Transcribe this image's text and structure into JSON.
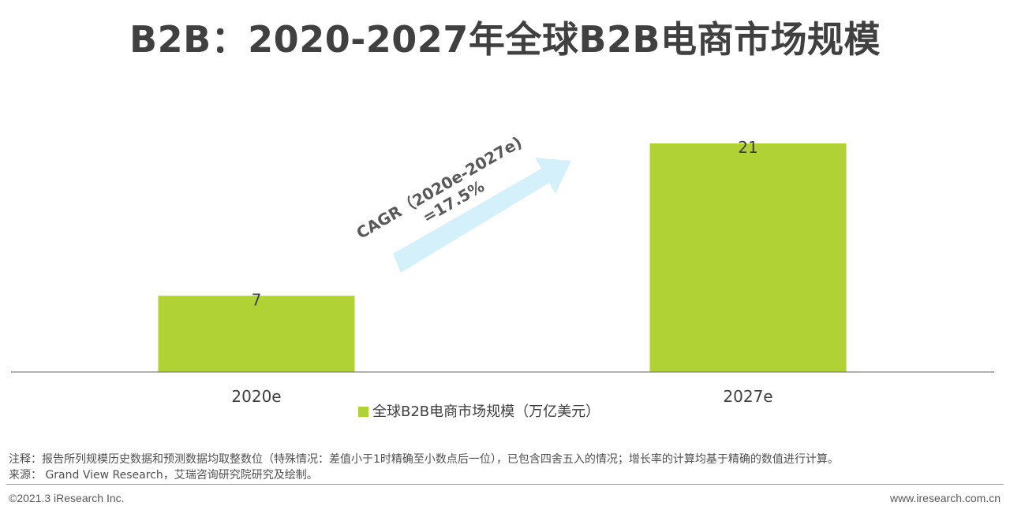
{
  "title": "B2B：2020-2027年全球B2B电商市场规模",
  "chart_data": {
    "type": "bar",
    "categories": [
      "2020e",
      "2027e"
    ],
    "series": [
      {
        "name": "全球B2B电商市场规模（万亿美元）",
        "values": [
          7,
          21
        ],
        "color": "#b0d234"
      }
    ],
    "data_labels": [
      "7",
      "21"
    ],
    "ylim": [
      0,
      21
    ],
    "grid": false,
    "legend_position": "bottom",
    "annotation": {
      "line1": "CAGR（2020e-2027e)",
      "line2": "=17.5%",
      "arrow_color": "#d4f1fb",
      "text_color": "#595959"
    }
  },
  "notes": {
    "note_line": "注释：报告所列规模历史数据和预测数据均取整数位（特殊情况：差值小于1时精确至小数点后一位），已包含四舍五入的情况；增长率的计算均基于精确的数值进行计算。",
    "source_line": "来源： Grand View Research，艾瑞咨询研究院研究及绘制。"
  },
  "footer": {
    "copyright": "©2021.3 iResearch Inc.",
    "website": "www.iresearch.com.cn"
  }
}
